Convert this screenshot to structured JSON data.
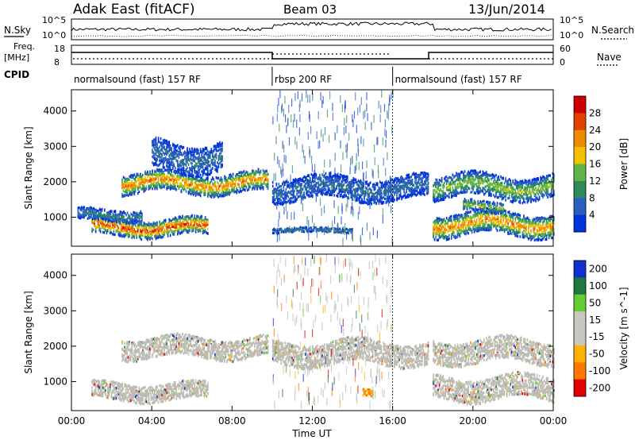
{
  "header": {
    "station": "Adak East (fitACF)",
    "beam": "Beam 03",
    "date": "13/Jun/2014"
  },
  "labels": {
    "nsky": "N.Sky",
    "nsearch": "N.Search",
    "freq_top": "Freq.",
    "freq_unit": "[MHz]",
    "nave": "Nave",
    "cpid": "CPID",
    "nsky_tick_hi": "10^5",
    "nsky_tick_lo": "10^0",
    "nsearch_tick_hi": "10^5",
    "nsearch_tick_lo": "10^0",
    "freq_tick_hi": "18",
    "freq_tick_lo": "8",
    "nave_tick_hi": "60",
    "nave_tick_lo": "0"
  },
  "cpid_segments": [
    {
      "label": "normalsound (fast) 157 RF",
      "start_hour": 0,
      "end_hour": 10
    },
    {
      "label": "rbsp 200 RF",
      "start_hour": 10,
      "end_hour": 16
    },
    {
      "label": "normalsound (fast) 157 RF",
      "start_hour": 16,
      "end_hour": 24
    }
  ],
  "colors": {
    "power_scale": [
      "#0033dd",
      "#2a5fc0",
      "#2f8a5a",
      "#5fb74a",
      "#f5c000",
      "#f08a00",
      "#e04000",
      "#cc0000"
    ],
    "velocity_scale": [
      "#1030d0",
      "#1e7840",
      "#66cc33",
      "#c8c8c0",
      "#c8c8c0",
      "#ffb000",
      "#ff7700",
      "#e00000"
    ],
    "ground_scatter": "#bcbcb4"
  },
  "chart_data": [
    {
      "type": "heatmap",
      "panel": "power",
      "xlabel": "Time UT",
      "ylabel": "Slant Range [km]",
      "xlim": [
        0,
        24
      ],
      "ylim": [
        180,
        4600
      ],
      "x_ticks": [
        "00:00",
        "04:00",
        "08:00",
        "12:00",
        "16:00",
        "20:00",
        "00:00"
      ],
      "y_ticks": [
        1000,
        2000,
        3000,
        4000
      ],
      "colorbar": {
        "label": "Power [dB]",
        "ticks": [
          4,
          8,
          12,
          16,
          20,
          24,
          28
        ]
      },
      "echo_bands": [
        {
          "x": [
            1.0,
            6.8
          ],
          "range_center": 700,
          "range_width": 300,
          "peak_value": 26
        },
        {
          "x": [
            0.3,
            3.5
          ],
          "range_center": 1050,
          "range_width": 200,
          "peak_value": 8
        },
        {
          "x": [
            2.5,
            9.8
          ],
          "range_center": 1950,
          "range_width": 350,
          "peak_value": 22
        },
        {
          "x": [
            4.0,
            7.5
          ],
          "range_center": 2700,
          "range_width": 500,
          "peak_value": 6
        },
        {
          "x": [
            10.0,
            17.8
          ],
          "range_center": 1800,
          "range_width": 400,
          "peak_value": 6
        },
        {
          "x": [
            10.0,
            14.0
          ],
          "range_center": 620,
          "range_width": 80,
          "peak_value": 8
        },
        {
          "x": [
            18.0,
            24.0
          ],
          "range_center": 800,
          "range_width": 400,
          "peak_value": 22
        },
        {
          "x": [
            18.0,
            24.0
          ],
          "range_center": 1850,
          "range_width": 400,
          "peak_value": 14
        },
        {
          "x": [
            19.5,
            21.5
          ],
          "range_center": 1300,
          "range_width": 200,
          "peak_value": 14
        }
      ]
    },
    {
      "type": "heatmap",
      "panel": "velocity",
      "xlabel": "Time UT",
      "ylabel": "Slant Range [km]",
      "xlim": [
        0,
        24
      ],
      "ylim": [
        180,
        4600
      ],
      "x_ticks": [
        "00:00",
        "04:00",
        "08:00",
        "12:00",
        "16:00",
        "20:00",
        "00:00"
      ],
      "y_ticks": [
        1000,
        2000,
        3000,
        4000
      ],
      "colorbar": {
        "label": "Velocity [m s^-1]",
        "ticks": [
          200,
          100,
          50,
          15,
          -15,
          -50,
          -100,
          -200
        ]
      },
      "echo_bands": [
        {
          "x": [
            1.0,
            6.8
          ],
          "range_center": 700,
          "range_width": 300,
          "value": 0
        },
        {
          "x": [
            2.5,
            9.8
          ],
          "range_center": 1950,
          "range_width": 350,
          "value": 0
        },
        {
          "x": [
            10.0,
            17.8
          ],
          "range_center": 1800,
          "range_width": 400,
          "value": 0
        },
        {
          "x": [
            14.5,
            15.0
          ],
          "range_center": 680,
          "range_width": 120,
          "value": -50
        },
        {
          "x": [
            18.0,
            24.0
          ],
          "range_center": 800,
          "range_width": 400,
          "value": 0
        },
        {
          "x": [
            18.0,
            24.0
          ],
          "range_center": 1850,
          "range_width": 400,
          "value": 0
        }
      ]
    }
  ]
}
